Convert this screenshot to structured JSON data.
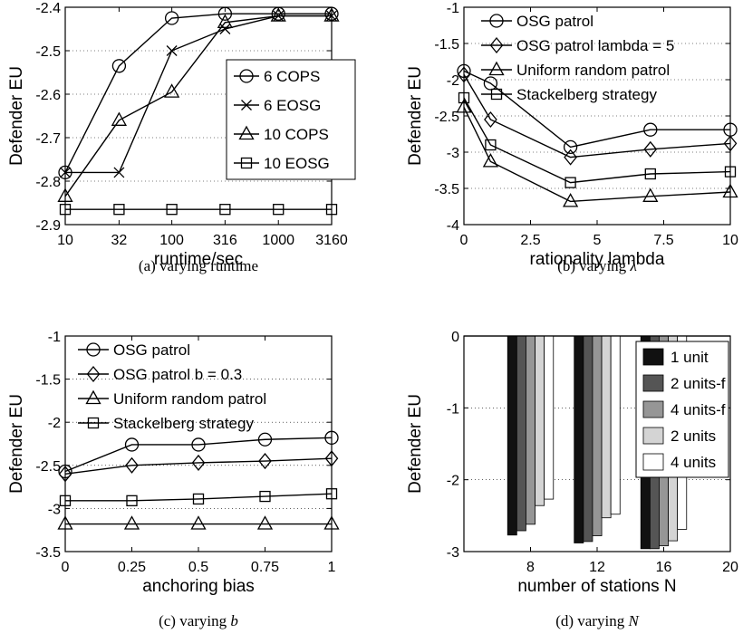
{
  "chart_data": [
    {
      "id": "a",
      "type": "line",
      "caption": "(a) varying runtime",
      "xlabel": "runtime/sec",
      "ylabel": "Defender EU",
      "x_scale": "log",
      "x": [
        10,
        32,
        100,
        316,
        1000,
        3160
      ],
      "xticks": [
        10,
        32,
        100,
        316,
        1000,
        3160
      ],
      "xlim": [
        10,
        3160
      ],
      "ylim": [
        -2.9,
        -2.4
      ],
      "yticks": [
        -2.9,
        -2.8,
        -2.7,
        -2.6,
        -2.5,
        -2.4
      ],
      "grid": "y-dotted",
      "legend_position": "center-right",
      "series": [
        {
          "name": "6 COPS",
          "marker": "circle",
          "values": [
            -2.78,
            -2.535,
            -2.425,
            -2.415,
            -2.415,
            -2.415
          ]
        },
        {
          "name": "6 EOSG",
          "marker": "x",
          "values": [
            -2.78,
            -2.78,
            -2.5,
            -2.45,
            -2.42,
            -2.42
          ]
        },
        {
          "name": "10 COPS",
          "marker": "triangle",
          "values": [
            -2.835,
            -2.66,
            -2.595,
            -2.435,
            -2.42,
            -2.42
          ]
        },
        {
          "name": "10 EOSG",
          "marker": "square",
          "values": [
            -2.865,
            -2.865,
            -2.865,
            -2.865,
            -2.865,
            -2.865
          ]
        }
      ]
    },
    {
      "id": "b",
      "type": "line",
      "caption": "(b) varying λ",
      "xlabel": "rationality lambda",
      "ylabel": "Defender EU",
      "x": [
        0,
        1,
        4,
        7,
        10
      ],
      "xticks": [
        0,
        2.5,
        5,
        7.5,
        10
      ],
      "xlim": [
        0,
        10
      ],
      "ylim": [
        -4,
        -1
      ],
      "yticks": [
        -4,
        -3.5,
        -3,
        -2.5,
        -2,
        -1.5,
        -1
      ],
      "grid": "y-dotted",
      "legend_position": "top",
      "series": [
        {
          "name": "OSG patrol",
          "marker": "circle",
          "values": [
            -1.88,
            -2.05,
            -2.93,
            -2.69,
            -2.69
          ]
        },
        {
          "name": "OSG patrol lambda = 5",
          "marker": "diamond",
          "values": [
            -1.93,
            -2.55,
            -3.07,
            -2.96,
            -2.88
          ]
        },
        {
          "name": "Uniform random patrol",
          "marker": "triangle",
          "values": [
            -2.38,
            -3.13,
            -3.68,
            -3.61,
            -3.55
          ]
        },
        {
          "name": "Stackelberg strategy",
          "marker": "square",
          "values": [
            -2.25,
            -2.9,
            -3.42,
            -3.3,
            -3.27
          ]
        }
      ]
    },
    {
      "id": "c",
      "type": "line",
      "caption": "(c) varying b",
      "xlabel": "anchoring bias",
      "ylabel": "Defender EU",
      "x": [
        0,
        0.25,
        0.5,
        0.75,
        1
      ],
      "xticks": [
        0,
        0.25,
        0.5,
        0.75,
        1
      ],
      "xlim": [
        0,
        1
      ],
      "ylim": [
        -3.5,
        -1
      ],
      "yticks": [
        -3.5,
        -3,
        -2.5,
        -2,
        -1.5,
        -1
      ],
      "grid": "y-dotted",
      "legend_position": "top",
      "series": [
        {
          "name": "OSG patrol",
          "marker": "circle",
          "values": [
            -2.57,
            -2.26,
            -2.26,
            -2.2,
            -2.18
          ]
        },
        {
          "name": "OSG patrol b = 0.3",
          "marker": "diamond",
          "values": [
            -2.6,
            -2.5,
            -2.47,
            -2.45,
            -2.42
          ]
        },
        {
          "name": "Uniform random patrol",
          "marker": "triangle",
          "values": [
            -3.18,
            -3.18,
            -3.18,
            -3.18,
            -3.18
          ]
        },
        {
          "name": "Stackelberg strategy",
          "marker": "square",
          "values": [
            -2.91,
            -2.91,
            -2.89,
            -2.86,
            -2.83
          ]
        }
      ]
    },
    {
      "id": "d",
      "type": "bar",
      "caption": "(d) varying N",
      "xlabel": "number of stations N",
      "ylabel": "Defender EU",
      "categories": [
        8,
        12,
        16
      ],
      "xticks": [
        8,
        12,
        16,
        20
      ],
      "xlim": [
        4,
        20
      ],
      "ylim": [
        -3,
        0
      ],
      "yticks": [
        -3,
        -2,
        -1,
        0
      ],
      "grid": "y-dotted",
      "legend_position": "top-right",
      "series": [
        {
          "name": "1 unit",
          "color": "#111111",
          "values": [
            -2.77,
            -2.88,
            -2.96
          ]
        },
        {
          "name": "2 units-f",
          "color": "#555555",
          "values": [
            -2.71,
            -2.86,
            -2.96
          ]
        },
        {
          "name": "4 units-f",
          "color": "#969696",
          "values": [
            -2.62,
            -2.78,
            -2.92
          ]
        },
        {
          "name": "2 units",
          "color": "#d4d4d4",
          "values": [
            -2.36,
            -2.53,
            -2.85
          ]
        },
        {
          "name": "4 units",
          "color": "#ffffff",
          "values": [
            -2.27,
            -2.48,
            -2.69
          ]
        }
      ]
    }
  ]
}
